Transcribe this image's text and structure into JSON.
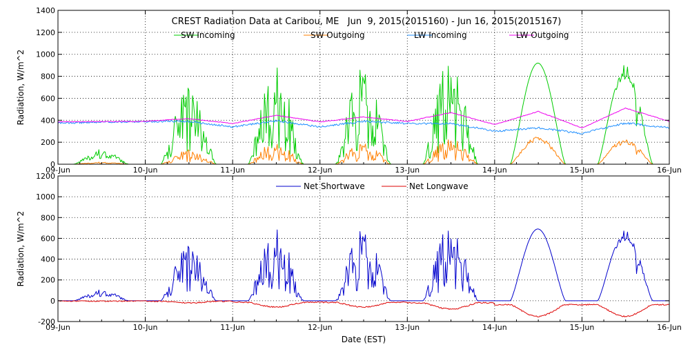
{
  "chart_data": [
    {
      "type": "line",
      "title": "CREST Radiation Data at Caribou, ME   Jun  9, 2015(2015160) - Jun 16, 2015(2015167)",
      "xlabel": "",
      "ylabel": "Radiation, W/m^2",
      "xlim": [
        "2015-06-09",
        "2015-06-16"
      ],
      "ylim": [
        0,
        1400
      ],
      "yticks": [
        0,
        200,
        400,
        600,
        800,
        1000,
        1200,
        1400
      ],
      "xticks": [
        "09-Jun",
        "10-Jun",
        "11-Jun",
        "12-Jun",
        "13-Jun",
        "14-Jun",
        "15-Jun",
        "16-Jun"
      ],
      "grid": true,
      "legend_placement": "top",
      "series": [
        {
          "name": "SW Incoming",
          "color": "#00cc00",
          "daily_peak": [
            140,
            740,
            900,
            900,
            970,
            920,
            910,
            0
          ],
          "daily_profile": [
            "partly-cloudy",
            "cloudy",
            "cloudy",
            "cloudy",
            "cloudy",
            "clear",
            "mostly-clear"
          ]
        },
        {
          "name": "SW Outgoing",
          "color": "#ff7f00",
          "daily_peak": [
            20,
            130,
            200,
            200,
            240,
            230,
            230,
            0
          ]
        },
        {
          "name": "LW Incoming",
          "color": "#1f8fff",
          "x": [
            "2015-06-09",
            "2015-06-10",
            "2015-06-10 12:00",
            "2015-06-11",
            "2015-06-11 12:00",
            "2015-06-12",
            "2015-06-12 12:00",
            "2015-06-13",
            "2015-06-13 12:00",
            "2015-06-14",
            "2015-06-14 12:00",
            "2015-06-15",
            "2015-06-15 12:00",
            "2015-06-16"
          ],
          "values": [
            375,
            390,
            390,
            340,
            395,
            340,
            390,
            370,
            370,
            300,
            330,
            280,
            375,
            330
          ]
        },
        {
          "name": "LW Outgoing",
          "color": "#ee00ee",
          "x": [
            "2015-06-09",
            "2015-06-10",
            "2015-06-10 12:00",
            "2015-06-11",
            "2015-06-11 12:00",
            "2015-06-12",
            "2015-06-12 12:00",
            "2015-06-13",
            "2015-06-13 12:00",
            "2015-06-14",
            "2015-06-14 12:00",
            "2015-06-15",
            "2015-06-15 12:00",
            "2015-06-16"
          ],
          "values": [
            385,
            390,
            415,
            370,
            445,
            385,
            430,
            390,
            470,
            360,
            480,
            330,
            510,
            390
          ]
        }
      ]
    },
    {
      "type": "line",
      "title": "",
      "xlabel": "Date (EST)",
      "ylabel": "Radiation, W/m^2",
      "xlim": [
        "2015-06-09",
        "2015-06-16"
      ],
      "ylim": [
        -200,
        1200
      ],
      "yticks": [
        -200,
        0,
        200,
        400,
        600,
        800,
        1000,
        1200
      ],
      "xticks": [
        "09-Jun",
        "10-Jun",
        "11-Jun",
        "12-Jun",
        "13-Jun",
        "14-Jun",
        "15-Jun",
        "16-Jun"
      ],
      "grid": true,
      "legend_placement": "top",
      "series": [
        {
          "name": "Net Shortwave",
          "color": "#0000cc",
          "daily_peak": [
            110,
            560,
            700,
            700,
            730,
            690,
            680,
            0
          ]
        },
        {
          "name": "Net Longwave",
          "color": "#dd0000",
          "daily_trough": [
            -5,
            -20,
            -60,
            -60,
            -80,
            -150,
            -150,
            -50
          ]
        }
      ]
    }
  ]
}
